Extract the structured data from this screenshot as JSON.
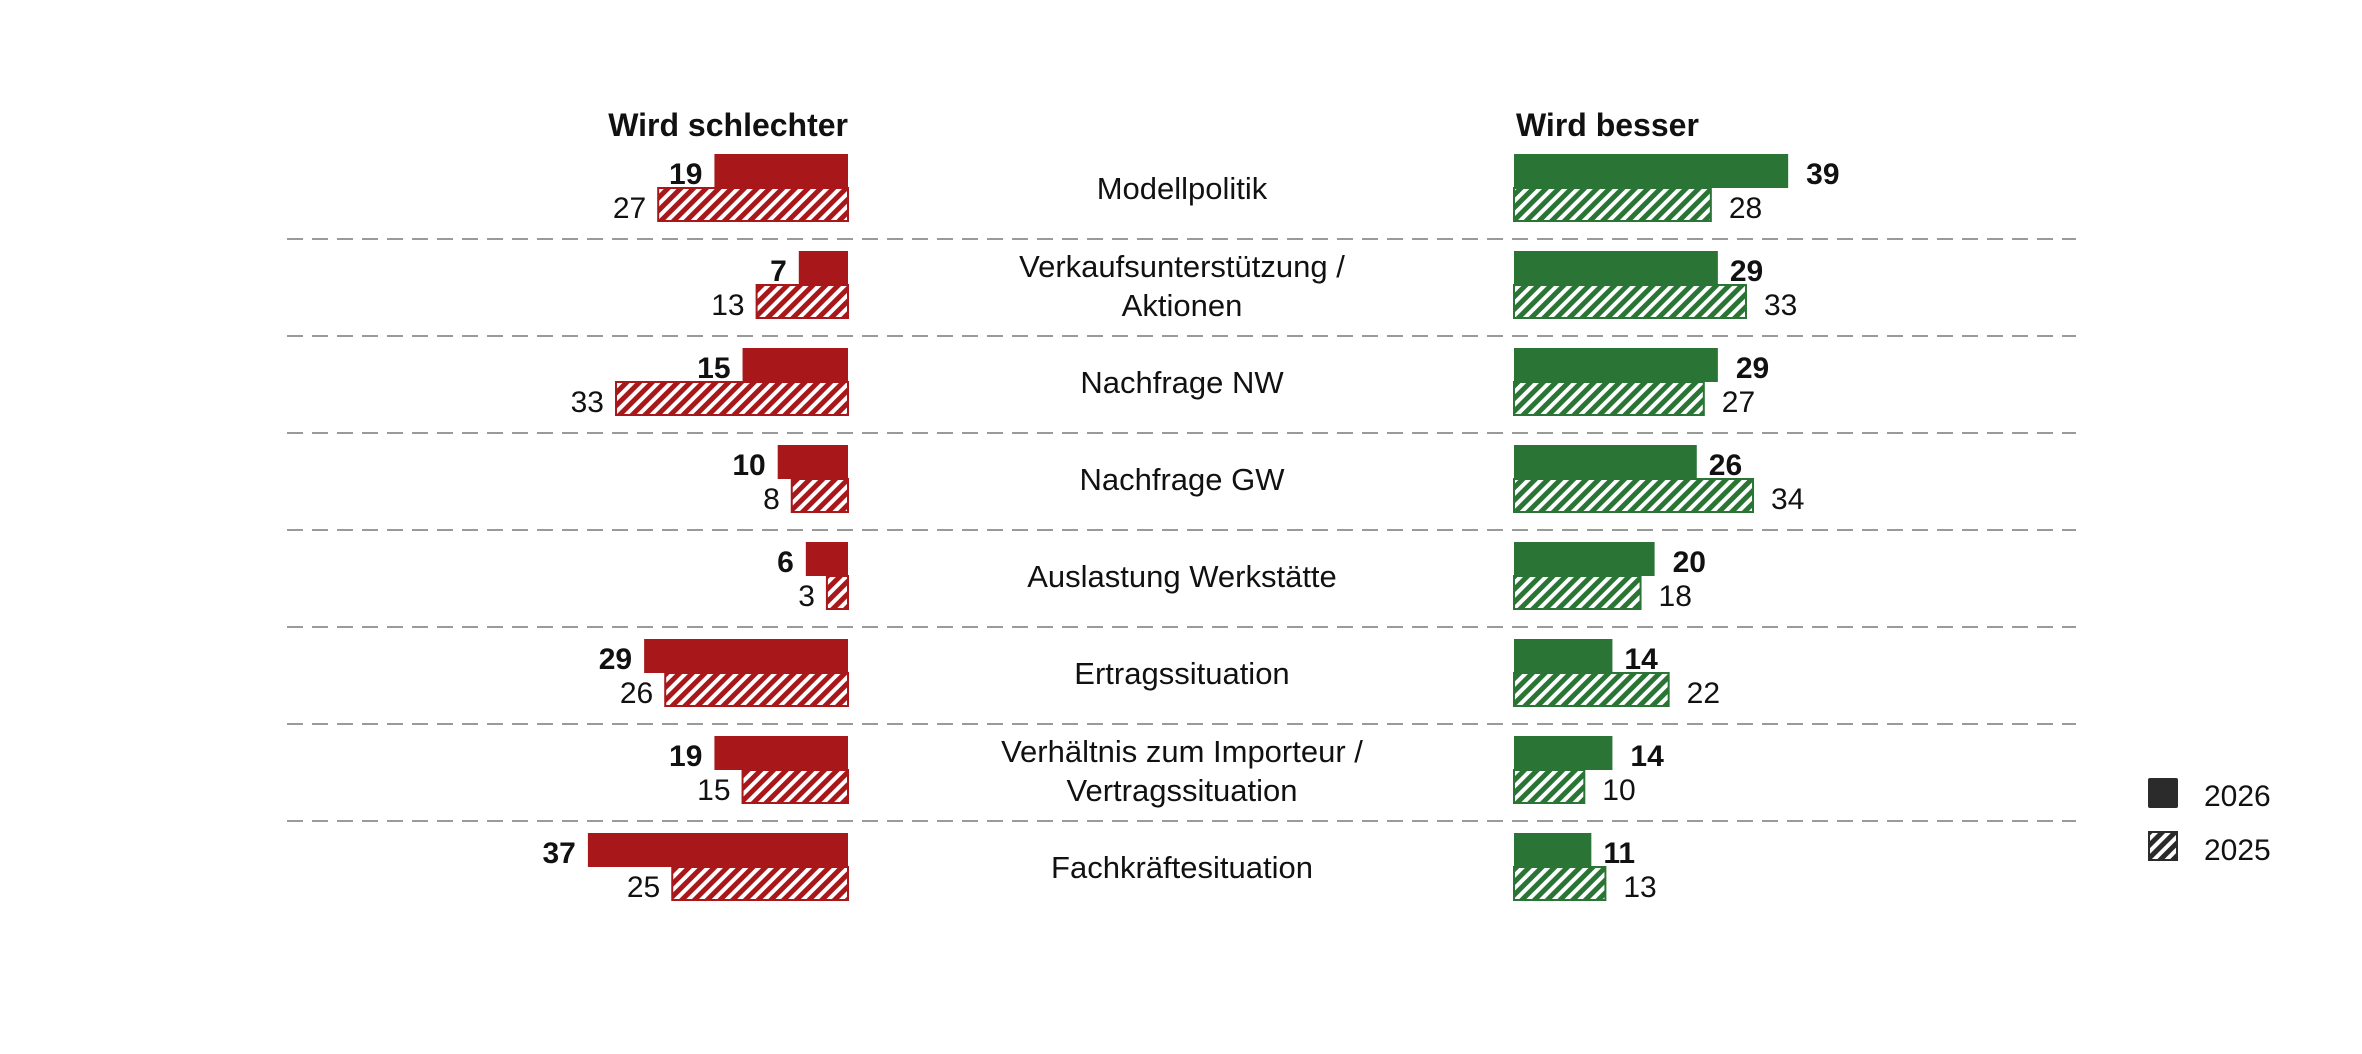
{
  "chart_data": {
    "type": "bar",
    "orientation": "horizontal-diverging",
    "left_header": "Wird schlechter",
    "right_header": "Wird besser",
    "categories": [
      [
        "Modellpolitik"
      ],
      [
        "Verkaufsunterstützung /",
        "Aktionen"
      ],
      [
        "Nachfrage NW"
      ],
      [
        "Nachfrage GW"
      ],
      [
        "Auslastung Werkstätte"
      ],
      [
        "Ertragssituation"
      ],
      [
        "Verhältnis zum Importeur /",
        "Vertragssituation"
      ],
      [
        "Fachkräftesituation"
      ]
    ],
    "series": [
      {
        "name": "2026",
        "pattern": "solid",
        "worse": [
          19,
          7,
          15,
          10,
          6,
          29,
          19,
          37
        ],
        "better": [
          39,
          29,
          29,
          26,
          20,
          14,
          14,
          11
        ]
      },
      {
        "name": "2025",
        "pattern": "hatched",
        "worse": [
          27,
          13,
          33,
          8,
          3,
          26,
          15,
          25
        ],
        "better": [
          28,
          33,
          27,
          34,
          18,
          22,
          10,
          13
        ]
      }
    ],
    "legend": [
      {
        "label": "2026",
        "pattern": "solid"
      },
      {
        "label": "2025",
        "pattern": "hatched"
      }
    ],
    "legend_position": "right",
    "colors": {
      "worse": "#a8181b",
      "better": "#2a7535",
      "legend": "#2b2b2b",
      "text": "#111111",
      "separator": "#9a9a9a"
    }
  }
}
